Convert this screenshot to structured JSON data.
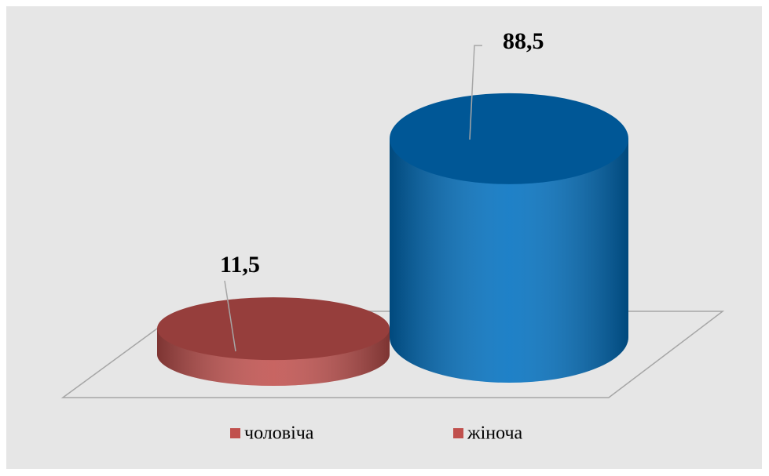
{
  "chart_data": {
    "type": "cylinder",
    "series": [
      {
        "name": "чоловіча",
        "color": "#c0504d",
        "values": [
          11.5
        ],
        "value_labels": [
          "11,5"
        ]
      },
      {
        "name": "жіноча",
        "color": "#0070c0",
        "values": [
          88.5
        ],
        "value_labels": [
          "88,5"
        ]
      }
    ],
    "legend_marker_color": "#c0504d",
    "legend": "bottom"
  }
}
